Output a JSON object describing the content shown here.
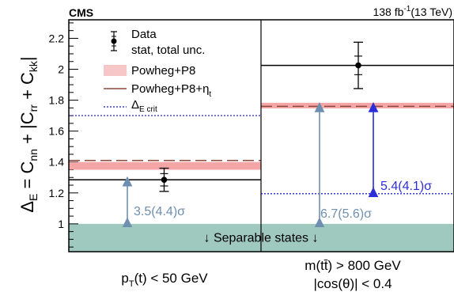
{
  "header": {
    "experiment": "CMS",
    "lumi_value": "138 fb",
    "lumi_exp": "-1",
    "lumi_energy": "(13 TeV)"
  },
  "colors": {
    "data": "#000000",
    "powheg_band": "#f4a6a6",
    "powheg_line": "#f7c6c6",
    "powheg_eta_line": "#8b4a3a",
    "critical_line": "#3a3ad6",
    "separable_fill": "#9fc9bf",
    "sig_arrow_gray": "#6f8fb0",
    "sig_arrow_blue": "#2d2dd8",
    "separable_text": "#6f8fb0"
  },
  "chart_data": {
    "type": "scatter",
    "ylim": [
      0.82,
      2.32
    ],
    "yticks": [
      1.0,
      1.2,
      1.4,
      1.6,
      1.8,
      2.0,
      2.2
    ],
    "ytick_labels": [
      "1",
      "1.2",
      "1.4",
      "1.6",
      "1.8",
      "2",
      "2.2"
    ],
    "ylabel": {
      "main": "Δ",
      "main_sub": "E",
      "expr": " = C",
      "s1": "nn",
      "plus1": " + |C",
      "s2": "rr",
      "plus2": " + C",
      "s3": "kk",
      "close": "|"
    },
    "categories": [
      {
        "label": "p",
        "label_sub": "T",
        "label_rest": "(t) < 50 GeV",
        "line2": ""
      },
      {
        "label": "m(tt̄) > 800 GeV",
        "label_sub": "",
        "label_rest": "",
        "line2": "|cos(θ)| < 0.4"
      }
    ],
    "data": [
      {
        "value": 1.285,
        "stat_err": 0.04,
        "tot_err": 0.075
      },
      {
        "value": 2.025,
        "stat_err": 0.06,
        "tot_err": 0.15
      }
    ],
    "powheg": [
      {
        "value": 1.375,
        "band": 0.025
      },
      {
        "value": 1.765,
        "band": 0.018
      }
    ],
    "powheg_eta": [
      1.41,
      1.76
    ],
    "critical": [
      1.7,
      1.195
    ],
    "separable_threshold": 1.0,
    "significance": [
      {
        "text": "3.5(4.4)σ",
        "from": 1.0,
        "to": 1.285,
        "color": "gray"
      },
      {
        "text": "6.7(5.6)σ",
        "from": 1.0,
        "to": 1.765,
        "color": "gray"
      },
      {
        "text": "5.4(4.1)σ",
        "from": 1.195,
        "to": 1.765,
        "color": "blue"
      }
    ],
    "separable_label": "↓ Separable states ↓",
    "legend": {
      "data": "Data",
      "data_line2": "stat, total unc.",
      "powheg": "Powheg+P8",
      "powheg_eta": "Powheg+P8+η",
      "powheg_eta_sub": "t",
      "critical": "Δ",
      "critical_sub": "E crit"
    }
  }
}
